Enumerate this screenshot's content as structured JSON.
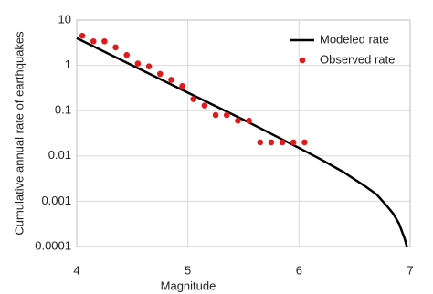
{
  "chart_data": {
    "type": "line",
    "x_label": "Magnitude",
    "y_label": "Cumulative annual rate of earthquakes",
    "xlim": [
      4,
      7
    ],
    "xticks": [
      4,
      5,
      6,
      7
    ],
    "ylim": [
      0.0001,
      10
    ],
    "yticks": [
      0.0001,
      0.001,
      0.01,
      0.1,
      1,
      10
    ],
    "y_scale": "log",
    "grid": true,
    "legend": "top-right",
    "series": [
      {
        "name": "Modeled rate",
        "type": "line",
        "color": "#000000",
        "x": [
          4,
          4.5,
          5,
          5.5,
          6,
          6.2,
          6.4,
          6.6,
          6.7,
          6.8,
          6.85,
          6.9,
          6.95,
          6.97
        ],
        "values": [
          4,
          1.0,
          0.25,
          0.063,
          0.015,
          0.0083,
          0.0044,
          0.0021,
          0.0014,
          0.00074,
          0.00052,
          0.00032,
          0.00015,
          0.0001
        ]
      },
      {
        "name": "Observed rate",
        "type": "scatter",
        "color": "#e31a1c",
        "x": [
          4.05,
          4.15,
          4.25,
          4.35,
          4.45,
          4.55,
          4.65,
          4.75,
          4.85,
          4.95,
          5.05,
          5.15,
          5.25,
          5.35,
          5.45,
          5.55,
          5.65,
          5.75,
          5.85,
          5.95,
          6.05
        ],
        "values": [
          4.5,
          3.4,
          3.4,
          2.5,
          1.7,
          1.1,
          0.95,
          0.65,
          0.48,
          0.35,
          0.18,
          0.13,
          0.08,
          0.08,
          0.06,
          0.06,
          0.02,
          0.02,
          0.02,
          0.02,
          0.02
        ]
      }
    ]
  }
}
